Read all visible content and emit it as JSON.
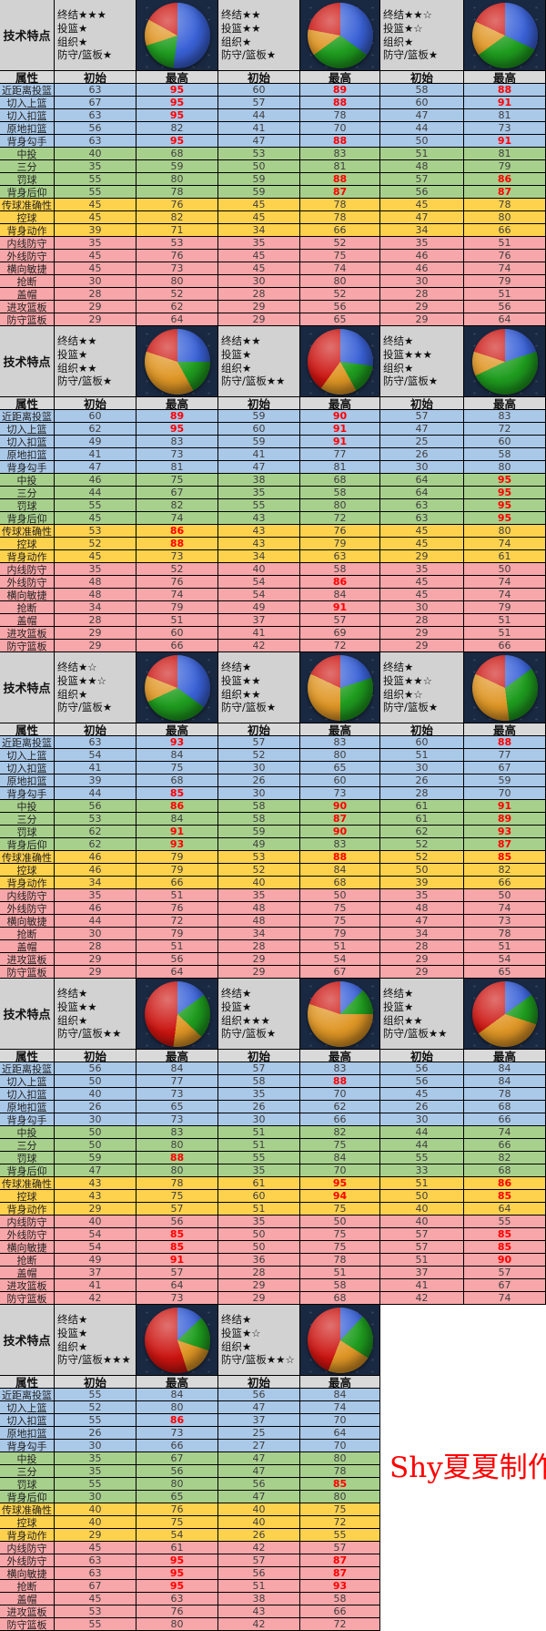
{
  "labels": {
    "tech_features": "技术特点",
    "attribute": "属性",
    "initial": "初始",
    "max": "最高"
  },
  "skill_categories": [
    "终结",
    "投篮",
    "组织",
    "防守/篮板"
  ],
  "signature": "Shy夏夏制作",
  "colors": {
    "blue_row": "#aac8e8",
    "green_row": "#a8d08d",
    "yellow_row": "#ffd24d",
    "pink_row": "#f7a6a9",
    "header_bg": "#d2d2d2",
    "col_header_bg": "#d9d9d9",
    "red_value": "#ff0000",
    "pie_bg": "#1a2942",
    "pie_blue": "#3a62d8",
    "pie_green": "#1f9e1f",
    "pie_orange": "#e09726",
    "pie_red": "#cc1410"
  },
  "attributes": [
    {
      "name": "近距离投篮",
      "group": "blue_row"
    },
    {
      "name": "切入上篮",
      "group": "blue_row"
    },
    {
      "name": "切入扣篮",
      "group": "blue_row"
    },
    {
      "name": "原地扣篮",
      "group": "blue_row"
    },
    {
      "name": "背身勾手",
      "group": "blue_row"
    },
    {
      "name": "中投",
      "group": "green_row"
    },
    {
      "name": "三分",
      "group": "green_row"
    },
    {
      "name": "罚球",
      "group": "green_row"
    },
    {
      "name": "背身后仰",
      "group": "green_row"
    },
    {
      "name": "传球准确性",
      "group": "yellow_row"
    },
    {
      "name": "控球",
      "group": "yellow_row"
    },
    {
      "name": "背身动作",
      "group": "yellow_row"
    },
    {
      "name": "内线防守",
      "group": "pink_row"
    },
    {
      "name": "外线防守",
      "group": "pink_row"
    },
    {
      "name": "横向敏捷",
      "group": "pink_row"
    },
    {
      "name": "抢断",
      "group": "pink_row"
    },
    {
      "name": "盖帽",
      "group": "pink_row"
    },
    {
      "name": "进攻篮板",
      "group": "pink_row"
    },
    {
      "name": "防守篮板",
      "group": "pink_row"
    }
  ],
  "sections": [
    {
      "players": [
        {
          "stars": [
            "★★★",
            "★",
            "★",
            "★"
          ],
          "pie": [
            52,
            18,
            13,
            17
          ]
        },
        {
          "stars": [
            "★★",
            "★★",
            "★",
            "★"
          ],
          "pie": [
            35,
            30,
            13,
            22
          ]
        },
        {
          "stars": [
            "★★☆",
            "★☆",
            "★",
            "★"
          ],
          "pie": [
            32,
            33,
            17,
            18
          ]
        }
      ],
      "rows": [
        [
          63,
          "!95",
          60,
          "!89",
          58,
          "!88"
        ],
        [
          67,
          "!95",
          57,
          "!88",
          60,
          "!91"
        ],
        [
          63,
          "!95",
          44,
          78,
          47,
          81
        ],
        [
          56,
          82,
          41,
          70,
          44,
          73
        ],
        [
          63,
          "!95",
          47,
          "!88",
          50,
          "!91"
        ],
        [
          40,
          68,
          53,
          83,
          51,
          81
        ],
        [
          35,
          59,
          50,
          81,
          48,
          79
        ],
        [
          55,
          80,
          59,
          "!88",
          57,
          "!86"
        ],
        [
          55,
          78,
          59,
          "!87",
          56,
          "!87"
        ],
        [
          45,
          76,
          45,
          78,
          45,
          78
        ],
        [
          45,
          82,
          45,
          78,
          47,
          80
        ],
        [
          39,
          71,
          34,
          66,
          34,
          66
        ],
        [
          35,
          53,
          35,
          52,
          35,
          51
        ],
        [
          45,
          76,
          45,
          75,
          46,
          76
        ],
        [
          45,
          73,
          45,
          74,
          46,
          74
        ],
        [
          30,
          80,
          30,
          80,
          30,
          79
        ],
        [
          28,
          52,
          28,
          52,
          28,
          51
        ],
        [
          29,
          62,
          29,
          56,
          29,
          56
        ],
        [
          29,
          64,
          29,
          65,
          29,
          64
        ]
      ]
    },
    {
      "players": [
        {
          "stars": [
            "★★",
            "★",
            "★★",
            "★"
          ],
          "pie": [
            25,
            17,
            38,
            20
          ]
        },
        {
          "stars": [
            "★★",
            "★",
            "★",
            "★★"
          ],
          "pie": [
            27,
            15,
            18,
            40
          ]
        },
        {
          "stars": [
            "★",
            "★★★",
            "★",
            "★"
          ],
          "pie": [
            20,
            48,
            12,
            20
          ]
        }
      ],
      "rows": [
        [
          60,
          "!89",
          59,
          "!90",
          57,
          83
        ],
        [
          62,
          "!95",
          60,
          "!91",
          47,
          72
        ],
        [
          49,
          83,
          59,
          "!91",
          25,
          60
        ],
        [
          41,
          73,
          41,
          77,
          26,
          58
        ],
        [
          47,
          81,
          47,
          81,
          30,
          80
        ],
        [
          46,
          75,
          38,
          68,
          64,
          "!95"
        ],
        [
          44,
          67,
          35,
          58,
          64,
          "!95"
        ],
        [
          55,
          82,
          55,
          80,
          63,
          "!95"
        ],
        [
          45,
          74,
          43,
          72,
          63,
          "!95"
        ],
        [
          53,
          "!86",
          43,
          76,
          45,
          80
        ],
        [
          52,
          "!88",
          43,
          79,
          45,
          74
        ],
        [
          45,
          73,
          34,
          63,
          29,
          61
        ],
        [
          35,
          52,
          40,
          58,
          35,
          50
        ],
        [
          48,
          76,
          54,
          "!86",
          45,
          74
        ],
        [
          48,
          74,
          54,
          84,
          45,
          74
        ],
        [
          34,
          79,
          49,
          "!91",
          30,
          79
        ],
        [
          28,
          51,
          37,
          57,
          28,
          51
        ],
        [
          29,
          60,
          41,
          69,
          29,
          51
        ],
        [
          29,
          66,
          42,
          72,
          29,
          66
        ]
      ]
    },
    {
      "players": [
        {
          "stars": [
            "★☆",
            "★★☆",
            "★",
            "★"
          ],
          "pie": [
            35,
            33,
            13,
            19
          ]
        },
        {
          "stars": [
            "★",
            "★★",
            "★★",
            "★"
          ],
          "pie": [
            20,
            30,
            32,
            18
          ]
        },
        {
          "stars": [
            "★",
            "★★☆",
            "★☆",
            "★"
          ],
          "pie": [
            15,
            33,
            34,
            18
          ]
        }
      ],
      "rows": [
        [
          63,
          "!93",
          57,
          83,
          60,
          "!88"
        ],
        [
          54,
          84,
          52,
          80,
          51,
          77
        ],
        [
          41,
          75,
          30,
          65,
          30,
          67
        ],
        [
          39,
          68,
          26,
          60,
          26,
          59
        ],
        [
          44,
          "!85",
          30,
          73,
          28,
          70
        ],
        [
          56,
          "!86",
          58,
          "!90",
          61,
          "!91"
        ],
        [
          53,
          84,
          58,
          "!87",
          61,
          "!89"
        ],
        [
          62,
          "!91",
          59,
          "!90",
          62,
          "!93"
        ],
        [
          62,
          "!93",
          49,
          83,
          52,
          "!87"
        ],
        [
          46,
          79,
          53,
          "!88",
          52,
          "!85"
        ],
        [
          46,
          79,
          52,
          84,
          50,
          82
        ],
        [
          34,
          66,
          40,
          68,
          39,
          66
        ],
        [
          35,
          51,
          35,
          50,
          35,
          50
        ],
        [
          46,
          76,
          48,
          75,
          48,
          74
        ],
        [
          44,
          72,
          48,
          75,
          47,
          73
        ],
        [
          30,
          79,
          34,
          79,
          34,
          78
        ],
        [
          28,
          51,
          28,
          51,
          28,
          51
        ],
        [
          29,
          56,
          29,
          54,
          29,
          54
        ],
        [
          29,
          64,
          29,
          67,
          29,
          65
        ]
      ]
    },
    {
      "players": [
        {
          "stars": [
            "★",
            "★★",
            "★",
            "★★"
          ],
          "pie": [
            15,
            22,
            15,
            48
          ]
        },
        {
          "stars": [
            "★",
            "★",
            "★★★",
            "★"
          ],
          "pie": [
            12,
            13,
            55,
            20
          ]
        },
        {
          "stars": [
            "★",
            "★",
            "★★",
            "★★"
          ],
          "pie": [
            15,
            15,
            35,
            35
          ]
        }
      ],
      "rows": [
        [
          56,
          84,
          57,
          83,
          56,
          84
        ],
        [
          50,
          77,
          58,
          "!88",
          56,
          84
        ],
        [
          40,
          73,
          35,
          70,
          45,
          78
        ],
        [
          26,
          65,
          26,
          62,
          26,
          68
        ],
        [
          30,
          73,
          30,
          66,
          30,
          66
        ],
        [
          50,
          83,
          51,
          82,
          44,
          74
        ],
        [
          50,
          80,
          51,
          75,
          44,
          66
        ],
        [
          59,
          "!88",
          55,
          84,
          55,
          82
        ],
        [
          47,
          80,
          35,
          70,
          33,
          68
        ],
        [
          43,
          78,
          61,
          "!95",
          51,
          "!86"
        ],
        [
          43,
          75,
          60,
          "!94",
          50,
          "!85"
        ],
        [
          29,
          57,
          51,
          75,
          40,
          64
        ],
        [
          40,
          56,
          35,
          50,
          40,
          55
        ],
        [
          54,
          "!85",
          50,
          75,
          57,
          "!85"
        ],
        [
          54,
          "!85",
          50,
          75,
          57,
          "!85"
        ],
        [
          49,
          "!91",
          36,
          78,
          51,
          "!90"
        ],
        [
          37,
          57,
          28,
          51,
          37,
          57
        ],
        [
          41,
          64,
          29,
          58,
          41,
          67
        ],
        [
          42,
          73,
          29,
          68,
          42,
          74
        ]
      ]
    },
    {
      "players": [
        {
          "stars": [
            "★",
            "★",
            "★",
            "★★★"
          ],
          "pie": [
            13,
            17,
            15,
            55
          ]
        },
        {
          "stars": [
            "★",
            "★☆",
            "★",
            "★★☆"
          ],
          "pie": [
            12,
            22,
            22,
            44
          ]
        }
      ],
      "rows": [
        [
          55,
          84,
          56,
          84
        ],
        [
          52,
          80,
          47,
          74
        ],
        [
          55,
          "!86",
          37,
          70
        ],
        [
          26,
          73,
          25,
          64
        ],
        [
          30,
          66,
          27,
          70
        ],
        [
          35,
          67,
          47,
          80
        ],
        [
          35,
          56,
          47,
          78
        ],
        [
          55,
          80,
          56,
          "!85"
        ],
        [
          30,
          65,
          47,
          80
        ],
        [
          40,
          76,
          40,
          75
        ],
        [
          40,
          75,
          40,
          72
        ],
        [
          29,
          54,
          26,
          55
        ],
        [
          45,
          61,
          42,
          57
        ],
        [
          63,
          "!95",
          57,
          "!87"
        ],
        [
          63,
          "!95",
          56,
          "!87"
        ],
        [
          67,
          "!95",
          51,
          "!93"
        ],
        [
          45,
          63,
          38,
          58
        ],
        [
          53,
          76,
          43,
          66
        ],
        [
          55,
          80,
          42,
          72
        ]
      ]
    }
  ]
}
